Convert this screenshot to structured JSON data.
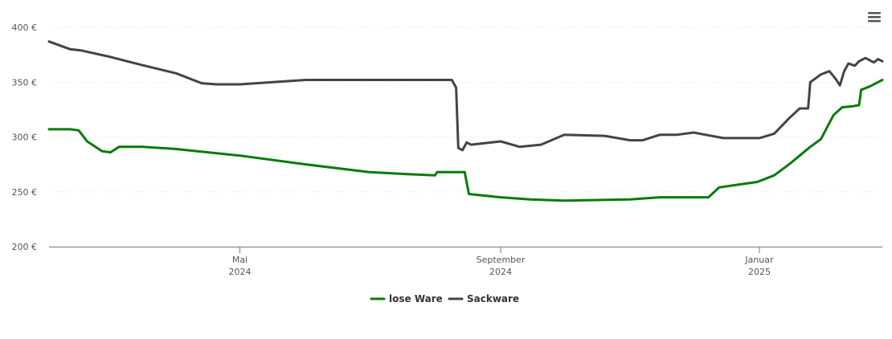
{
  "chart_data": {
    "type": "line",
    "title": "",
    "xlabel": "",
    "ylabel": "",
    "ylim": [
      200,
      400
    ],
    "xlim": [
      "2024-02-01",
      "2025-02-28"
    ],
    "y_ticks": [
      {
        "value": 200,
        "label": "200 €"
      },
      {
        "value": 250,
        "label": "250 €"
      },
      {
        "value": 300,
        "label": "300 €"
      },
      {
        "value": 350,
        "label": "350 €"
      },
      {
        "value": 400,
        "label": "400 €"
      }
    ],
    "x_ticks": [
      {
        "date": "2024-05-01",
        "label": "Mai",
        "year": "2024"
      },
      {
        "date": "2024-09-01",
        "label": "September",
        "year": "2024"
      },
      {
        "date": "2025-01-01",
        "label": "Januar",
        "year": "2025"
      }
    ],
    "grid": true,
    "legend": "bottom-center",
    "menu_icon": "hamburger-menu-icon",
    "series": [
      {
        "name": "lose Ware",
        "color": "#0a7a0a",
        "points": [
          [
            "2024-02-01",
            307
          ],
          [
            "2024-02-11",
            307
          ],
          [
            "2024-02-15",
            306
          ],
          [
            "2024-02-19",
            296
          ],
          [
            "2024-02-26",
            287
          ],
          [
            "2024-03-01",
            286
          ],
          [
            "2024-03-05",
            291
          ],
          [
            "2024-03-16",
            291
          ],
          [
            "2024-04-01",
            289
          ],
          [
            "2024-05-01",
            283
          ],
          [
            "2024-06-01",
            275
          ],
          [
            "2024-07-01",
            268
          ],
          [
            "2024-07-20",
            266
          ],
          [
            "2024-08-01",
            265
          ],
          [
            "2024-08-02",
            268
          ],
          [
            "2024-08-15",
            268
          ],
          [
            "2024-08-17",
            248
          ],
          [
            "2024-09-01",
            245
          ],
          [
            "2024-09-15",
            243
          ],
          [
            "2024-10-01",
            242
          ],
          [
            "2024-11-01",
            243
          ],
          [
            "2024-11-15",
            245
          ],
          [
            "2024-12-08",
            245
          ],
          [
            "2024-12-13",
            254
          ],
          [
            "2024-12-20",
            256
          ],
          [
            "2024-12-31",
            259
          ],
          [
            "2025-01-08",
            265
          ],
          [
            "2025-01-15",
            275
          ],
          [
            "2025-01-20",
            283
          ],
          [
            "2025-01-25",
            291
          ],
          [
            "2025-01-30",
            298
          ],
          [
            "2025-02-05",
            320
          ],
          [
            "2025-02-09",
            327
          ],
          [
            "2025-02-14",
            328
          ],
          [
            "2025-02-17",
            329
          ],
          [
            "2025-02-18",
            343
          ],
          [
            "2025-02-22",
            346
          ],
          [
            "2025-02-28",
            352
          ]
        ]
      },
      {
        "name": "Sackware",
        "color": "#444444",
        "points": [
          [
            "2024-02-01",
            387
          ],
          [
            "2024-02-11",
            380
          ],
          [
            "2024-02-16",
            379
          ],
          [
            "2024-03-01",
            373
          ],
          [
            "2024-03-15",
            366
          ],
          [
            "2024-04-01",
            358
          ],
          [
            "2024-04-13",
            349
          ],
          [
            "2024-04-20",
            348
          ],
          [
            "2024-05-01",
            348
          ],
          [
            "2024-06-01",
            352
          ],
          [
            "2024-07-01",
            352
          ],
          [
            "2024-08-09",
            352
          ],
          [
            "2024-08-11",
            345
          ],
          [
            "2024-08-12",
            290
          ],
          [
            "2024-08-14",
            288
          ],
          [
            "2024-08-16",
            295
          ],
          [
            "2024-08-18",
            293
          ],
          [
            "2024-09-01",
            296
          ],
          [
            "2024-09-10",
            291
          ],
          [
            "2024-09-20",
            293
          ],
          [
            "2024-10-01",
            302
          ],
          [
            "2024-10-20",
            301
          ],
          [
            "2024-11-01",
            297
          ],
          [
            "2024-11-07",
            297
          ],
          [
            "2024-11-15",
            302
          ],
          [
            "2024-11-23",
            302
          ],
          [
            "2024-12-01",
            304
          ],
          [
            "2024-12-15",
            299
          ],
          [
            "2025-01-01",
            299
          ],
          [
            "2025-01-08",
            303
          ],
          [
            "2025-01-15",
            317
          ],
          [
            "2025-01-20",
            326
          ],
          [
            "2025-01-24",
            326
          ],
          [
            "2025-01-25",
            350
          ],
          [
            "2025-01-30",
            357
          ],
          [
            "2025-02-03",
            360
          ],
          [
            "2025-02-06",
            353
          ],
          [
            "2025-02-08",
            347
          ],
          [
            "2025-02-10",
            360
          ],
          [
            "2025-02-12",
            367
          ],
          [
            "2025-02-15",
            365
          ],
          [
            "2025-02-17",
            369
          ],
          [
            "2025-02-20",
            372
          ],
          [
            "2025-02-24",
            368
          ],
          [
            "2025-02-26",
            371
          ],
          [
            "2025-02-28",
            369
          ]
        ]
      }
    ]
  }
}
